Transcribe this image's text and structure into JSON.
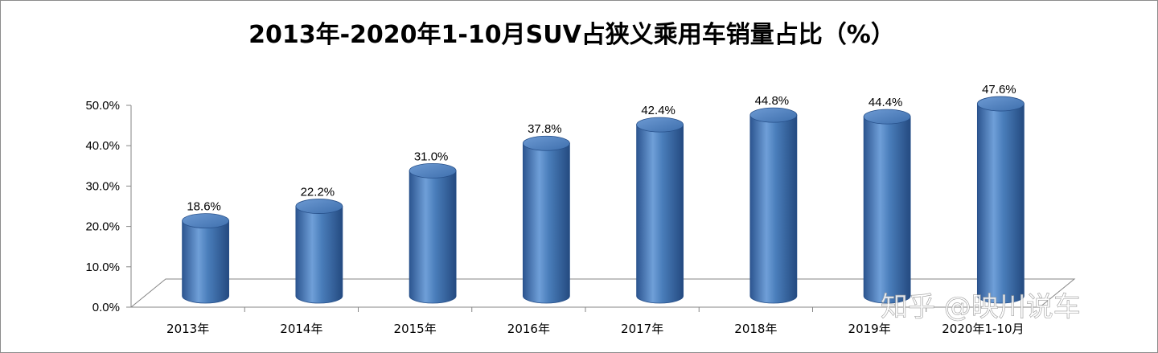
{
  "chart_data": {
    "type": "bar",
    "title": "2013年-2020年1-10月SUV占狭义乘用车销量占比（%）",
    "categories": [
      "2013年",
      "2014年",
      "2015年",
      "2016年",
      "2017年",
      "2018年",
      "2019年",
      "2020年1-10月"
    ],
    "values": [
      18.6,
      22.2,
      31.0,
      37.8,
      42.4,
      44.8,
      44.4,
      47.6
    ],
    "data_labels": [
      "18.6%",
      "22.2%",
      "31.0%",
      "37.8%",
      "42.4%",
      "44.8%",
      "44.4%",
      "47.6%"
    ],
    "y_ticks": [
      "0.0%",
      "10.0%",
      "20.0%",
      "30.0%",
      "40.0%",
      "50.0%"
    ],
    "ylim": [
      0,
      50
    ],
    "xlabel": "",
    "ylabel": "",
    "grid": false,
    "legend": "none",
    "bar_style": "3d-cylinder",
    "colors": {
      "bar": "#4a7ebb",
      "bar_dark": "#2c5590",
      "bar_light": "#8db4e2",
      "axis": "#868686"
    }
  },
  "watermark": "知乎 @映川说车"
}
